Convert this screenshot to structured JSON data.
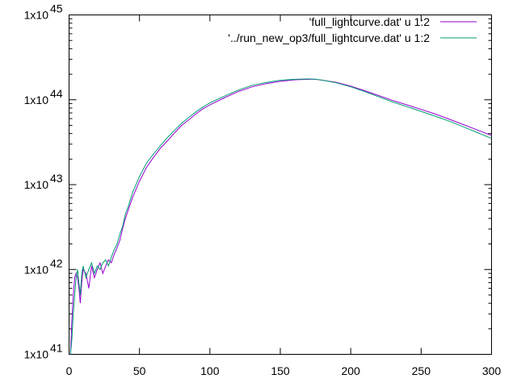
{
  "chart_data": {
    "type": "line",
    "title": "",
    "xlabel": "",
    "ylabel": "",
    "xlim": [
      0,
      300
    ],
    "ylim": [
      1e+41,
      1e+45
    ],
    "yscale": "log",
    "grid": false,
    "legend_position": "top-right",
    "x_ticks": [
      {
        "value": 0,
        "label": "0"
      },
      {
        "value": 50,
        "label": "50"
      },
      {
        "value": 100,
        "label": "100"
      },
      {
        "value": 150,
        "label": "150"
      },
      {
        "value": 200,
        "label": "200"
      },
      {
        "value": 250,
        "label": "250"
      },
      {
        "value": 300,
        "label": "300"
      }
    ],
    "y_ticks": [
      {
        "exp": 41,
        "mantissa": "1x10",
        "power": "41"
      },
      {
        "exp": 42,
        "mantissa": "1x10",
        "power": "42"
      },
      {
        "exp": 43,
        "mantissa": "1x10",
        "power": "43"
      },
      {
        "exp": 44,
        "mantissa": "1x10",
        "power": "44"
      },
      {
        "exp": 45,
        "mantissa": "1x10",
        "power": "45"
      }
    ],
    "series": [
      {
        "name": "'full_lightcurve.dat' u 1:2",
        "color": "#9400d3",
        "x": [
          1,
          2,
          3,
          4,
          5,
          6,
          7,
          8,
          9,
          10,
          12,
          14,
          16,
          18,
          20,
          22,
          24,
          26,
          28,
          30,
          32,
          34,
          36,
          38,
          40,
          42,
          45,
          50,
          55,
          60,
          65,
          70,
          75,
          80,
          85,
          90,
          95,
          100,
          110,
          120,
          130,
          140,
          150,
          160,
          170,
          175,
          180,
          190,
          200,
          210,
          220,
          230,
          240,
          250,
          260,
          270,
          280,
          290,
          300
        ],
        "y": [
          1e+41,
          2.5e+41,
          5e+41,
          8e+41,
          9e+41,
          8e+41,
          6e+41,
          4e+41,
          7e+41,
          1e+42,
          9e+41,
          6e+41,
          1.1e+42,
          8e+41,
          1e+42,
          1.2e+42,
          9e+41,
          1.1e+42,
          1.3e+42,
          1.2e+42,
          1.5e+42,
          1.8e+42,
          2.2e+42,
          3e+42,
          4e+42,
          5e+42,
          7e+42,
          1.1e+43,
          1.6e+43,
          2.1e+43,
          2.7e+43,
          3.3e+43,
          4.1e+43,
          5e+43,
          5.8e+43,
          6.8e+43,
          7.8e+43,
          8.7e+43,
          1.05e+44,
          1.25e+44,
          1.42e+44,
          1.55e+44,
          1.65e+44,
          1.72e+44,
          1.74e+44,
          1.74e+44,
          1.7e+44,
          1.6e+44,
          1.45e+44,
          1.28e+44,
          1.12e+44,
          9.8e+43,
          8.7e+43,
          7.7e+43,
          6.8e+43,
          5.9e+43,
          5.1e+43,
          4.4e+43,
          3.8e+43
        ]
      },
      {
        "name": "'../run_new_op3/full_lightcurve.dat' u 1:2",
        "color": "#009e73",
        "x": [
          1,
          2,
          3,
          4,
          5,
          6,
          7,
          8,
          9,
          10,
          12,
          14,
          16,
          18,
          20,
          22,
          24,
          26,
          28,
          30,
          32,
          34,
          36,
          38,
          40,
          42,
          45,
          50,
          55,
          60,
          65,
          70,
          75,
          80,
          85,
          90,
          95,
          100,
          110,
          120,
          130,
          140,
          150,
          160,
          170,
          175,
          180,
          190,
          200,
          210,
          220,
          230,
          240,
          250,
          260,
          270,
          280,
          290,
          300
        ],
        "y": [
          1e+41,
          1.5e+41,
          3e+41,
          5e+41,
          8e+41,
          1e+42,
          7e+41,
          5e+41,
          9e+41,
          1.1e+42,
          8e+41,
          1e+42,
          1.2e+42,
          9e+41,
          1.1e+42,
          1e+42,
          1.2e+42,
          1.3e+42,
          1.1e+42,
          1.4e+42,
          1.7e+42,
          2e+42,
          2.6e+42,
          3.2e+42,
          4.5e+42,
          5.5e+42,
          8e+42,
          1.25e+43,
          1.8e+43,
          2.3e+43,
          2.9e+43,
          3.6e+43,
          4.4e+43,
          5.3e+43,
          6.2e+43,
          7.2e+43,
          8.2e+43,
          9.2e+43,
          1.1e+44,
          1.3e+44,
          1.48e+44,
          1.6e+44,
          1.7e+44,
          1.74e+44,
          1.76e+44,
          1.75e+44,
          1.7e+44,
          1.58e+44,
          1.42e+44,
          1.25e+44,
          1.08e+44,
          9.4e+43,
          8.3e+43,
          7.3e+43,
          6.4e+43,
          5.6e+43,
          4.8e+43,
          4.1e+43,
          3.5e+43
        ]
      }
    ]
  }
}
